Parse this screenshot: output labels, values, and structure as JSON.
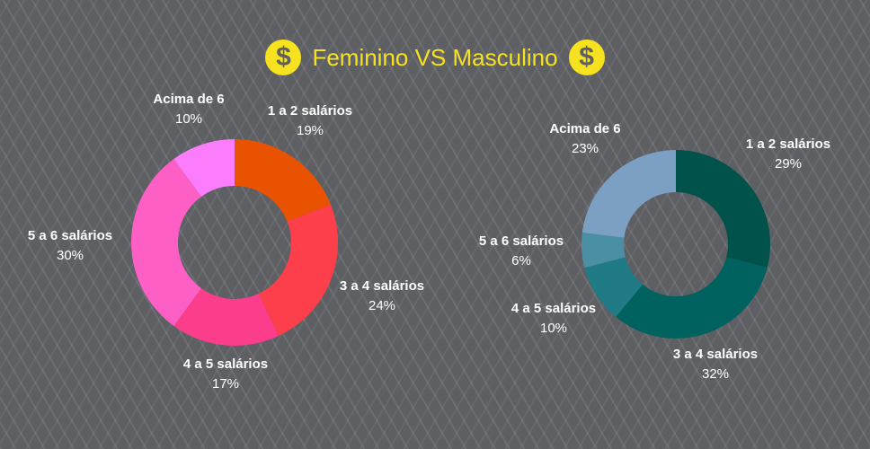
{
  "header": {
    "title": "Feminino VS Masculino",
    "coin_symbol": "$",
    "coin_color": "#f7e21f"
  },
  "chart_data": [
    {
      "type": "pie",
      "donut": true,
      "categories": [
        "1 a 2 salários",
        "3 a 4 salários",
        "4 a 5 salários",
        "5 a 6 salários",
        "Acima de 6"
      ],
      "values": [
        19,
        24,
        17,
        30,
        10
      ],
      "labels": [
        "19%",
        "24%",
        "17%",
        "30%",
        "10%"
      ],
      "colors": [
        "#e85200",
        "#fd3f4b",
        "#fb3d8c",
        "#fd5fc4",
        "#fb7dfb"
      ]
    },
    {
      "type": "pie",
      "donut": true,
      "categories": [
        "1 a 2 salários",
        "3 a 4 salários",
        "4 a 5 salários",
        "5 a 6 salários",
        "Acima de 6"
      ],
      "values": [
        29,
        32,
        10,
        6,
        23
      ],
      "labels": [
        "29%",
        "32%",
        "10%",
        "6%",
        "23%"
      ],
      "colors": [
        "#00524a",
        "#00625f",
        "#217b87",
        "#4b8fa4",
        "#7ba0c4"
      ]
    }
  ]
}
